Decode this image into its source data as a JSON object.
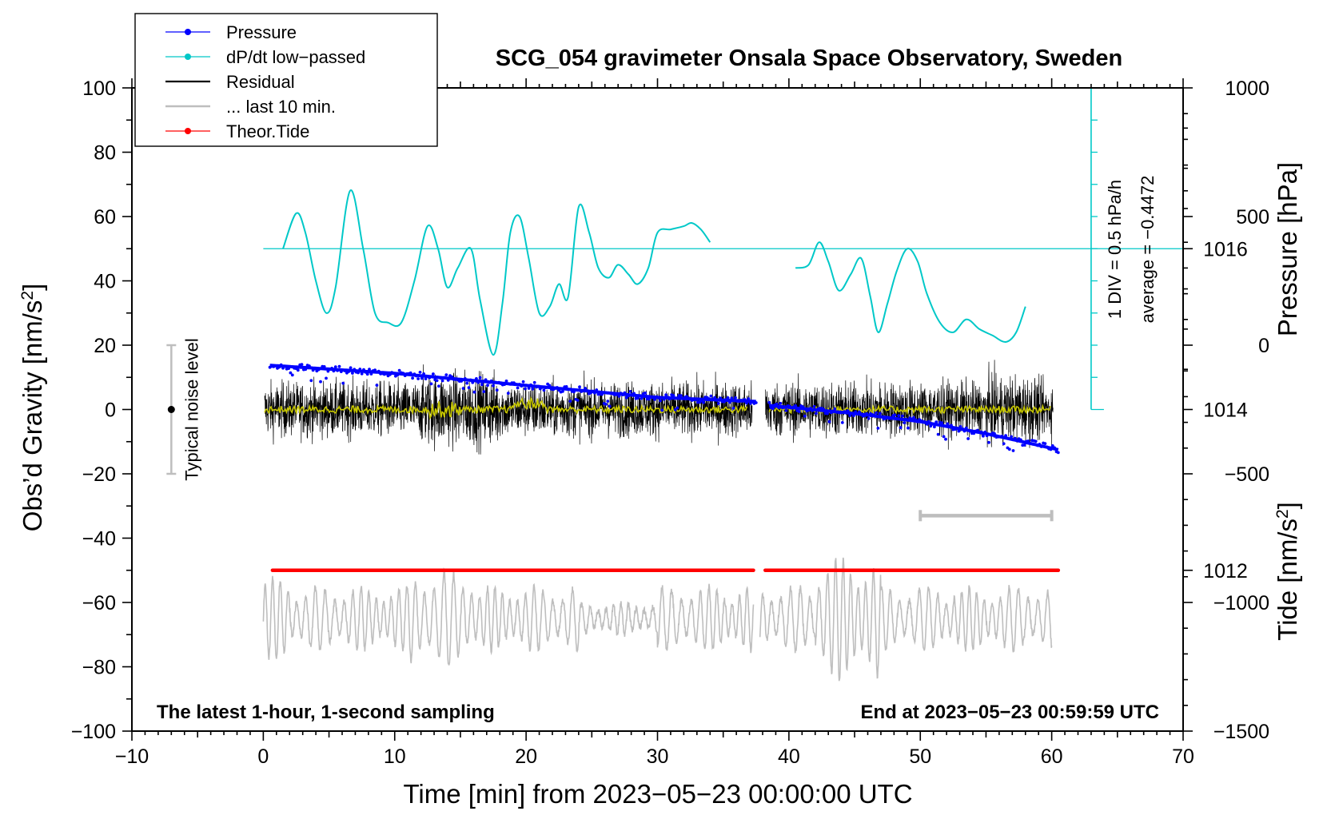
{
  "chart_data": {
    "type": "line",
    "title": "SCG_054 gravimeter Onsala Space Observatory, Sweden",
    "xlabel": "Time [min] from 2023−05−23 00:00:00 UTC",
    "ylabel_left_main": "Obs’d Gravity [nm/s",
    "ylabel_left_sup": "2",
    "ylabel_left_end": "]",
    "ylabel_right_pressure": "Pressure [hPa]",
    "ylabel_right_tide_main": "Tide [nm/s",
    "ylabel_right_tide_sup": "2",
    "ylabel_right_tide_end": "]",
    "xlim": [
      -10,
      70
    ],
    "ylim": [
      -100,
      100
    ],
    "x_ticks": [
      "−10",
      "0",
      "10",
      "20",
      "30",
      "40",
      "50",
      "60",
      "70"
    ],
    "x_tick_values": [
      -10,
      0,
      10,
      20,
      30,
      40,
      50,
      60,
      70
    ],
    "y_ticks": [
      "100",
      "80",
      "60",
      "40",
      "20",
      "0",
      "−20",
      "−40",
      "−60",
      "−80",
      "−100"
    ],
    "y_tick_values": [
      100,
      80,
      60,
      40,
      20,
      0,
      -20,
      -40,
      -60,
      -80,
      -100
    ],
    "pressure_axis": {
      "ticks": [
        "1016",
        "1014",
        "1012"
      ],
      "tick_values": [
        1016,
        1014,
        1012
      ],
      "range": [
        1010,
        1018
      ]
    },
    "tide_axis": {
      "ticks": [
        "1000",
        "500",
        "0",
        "−500",
        "−1000",
        "−1500"
      ],
      "tick_values": [
        1000,
        500,
        0,
        -500,
        -1000,
        -1500
      ],
      "range": [
        -1500,
        1000
      ]
    },
    "legend": [
      {
        "label": "Pressure",
        "color": "#0000ff",
        "style": "line-dot"
      },
      {
        "label": "dP/dt low−passed",
        "color": "#00c8c8",
        "style": "line-dot"
      },
      {
        "label": "Residual",
        "color": "#000000",
        "style": "line"
      },
      {
        "label": "... last 10 min.",
        "color": "#bebebe",
        "style": "line"
      },
      {
        "label": "Theor.Tide",
        "color": "#ff0000",
        "style": "line-dot"
      }
    ],
    "series": [
      {
        "name": "Pressure",
        "color": "#0000ff",
        "unit": "hPa",
        "segments": [
          {
            "x": [
              0.5,
              10,
              20,
              30,
              37.5
            ],
            "y": [
              1014.55,
              1014.45,
              1014.3,
              1014.15,
              1014.1
            ]
          },
          {
            "x": [
              38.5,
              45,
              50,
              55,
              60.5
            ],
            "y": [
              1014.05,
              1013.95,
              1013.85,
              1013.7,
              1013.5
            ]
          }
        ]
      },
      {
        "name": "dP/dt low−passed",
        "color": "#00c8c8",
        "unit": "DIV (gravity-scale)",
        "segments": [
          {
            "x": [
              1.5,
              2.5,
              3.2,
              4.0,
              4.8,
              5.5,
              6.6,
              7.6,
              8.5,
              9.5,
              10.5,
              11.5,
              12.5,
              13.3,
              14.0,
              14.8,
              15.8,
              16.5,
              17.5,
              18.2,
              18.8,
              19.5,
              20.2,
              21.0,
              21.8,
              22.5,
              23.2,
              24.0,
              24.8,
              25.5,
              26.3,
              27.0,
              27.8,
              28.5,
              29.3,
              30.0,
              31.0,
              32.0,
              32.6,
              33.3,
              34.0
            ],
            "y": [
              50,
              61,
              55,
              40,
              30,
              38,
              68,
              50,
              30,
              27,
              27,
              40,
              57,
              50,
              38,
              44,
              50,
              34,
              17,
              33,
              55,
              60,
              47,
              30,
              32,
              39,
              35,
              63,
              55,
              44,
              41,
              45,
              42,
              39,
              44,
              55,
              56,
              57,
              58,
              56,
              52
            ]
          },
          {
            "x": [
              40.5,
              41.5,
              42.3,
              43.0,
              43.8,
              44.7,
              45.5,
              46.2,
              46.8,
              47.5,
              48.2,
              49.0,
              49.8,
              50.5,
              51.5,
              52.5,
              53.5,
              54.5,
              55.5,
              56.5,
              57.3,
              58.0
            ],
            "y": [
              44,
              45,
              52,
              46,
              37,
              42,
              47,
              35,
              24,
              33,
              43,
              50,
              46,
              36,
              27,
              24,
              28,
              25,
              23,
              21,
              24,
              32
            ]
          }
        ]
      },
      {
        "name": "Residual",
        "color": "#000000",
        "unit": "nm/s2",
        "amplitude": 20,
        "segments": [
          {
            "x": [
              0.1,
              37.2
            ]
          },
          {
            "x": [
              38.2,
              60.1
            ]
          }
        ]
      },
      {
        "name": "Residual smoothed",
        "color": "#c8c800",
        "unit": "nm/s2",
        "segments": [
          {
            "x": [
              0.1,
              36.8
            ]
          },
          {
            "x": [
              38.5,
              59.9
            ]
          }
        ]
      },
      {
        "name": "... last 10 min.",
        "color": "#bebebe",
        "unit": "nm/s2",
        "center": -65,
        "segments": [
          {
            "x": [
              0.0,
              37.3
            ]
          },
          {
            "x": [
              37.8,
              60.0
            ]
          }
        ]
      },
      {
        "name": "Theor.Tide",
        "color": "#ff0000",
        "unit": "nm/s2",
        "y": -50,
        "segments": [
          {
            "x": [
              0.7,
              37.3
            ]
          },
          {
            "x": [
              38.2,
              60.5
            ]
          }
        ]
      }
    ],
    "pressure_scale": {
      "label": "1 DIV = 0.5 hPa/h",
      "average_label": "average = −0.4472",
      "x": 63,
      "y_range": [
        0,
        100
      ],
      "zero_line_y": 50
    },
    "noise_marker": {
      "label": "Typical noise level",
      "x": -7,
      "y_range": [
        -20,
        20
      ]
    },
    "last_10min_bar": {
      "x_range": [
        50,
        60
      ],
      "y": -33
    },
    "annotation_left": "The latest 1-hour, 1-second sampling",
    "annotation_right": "End at 2023−05−23 00:59:59 UTC"
  }
}
